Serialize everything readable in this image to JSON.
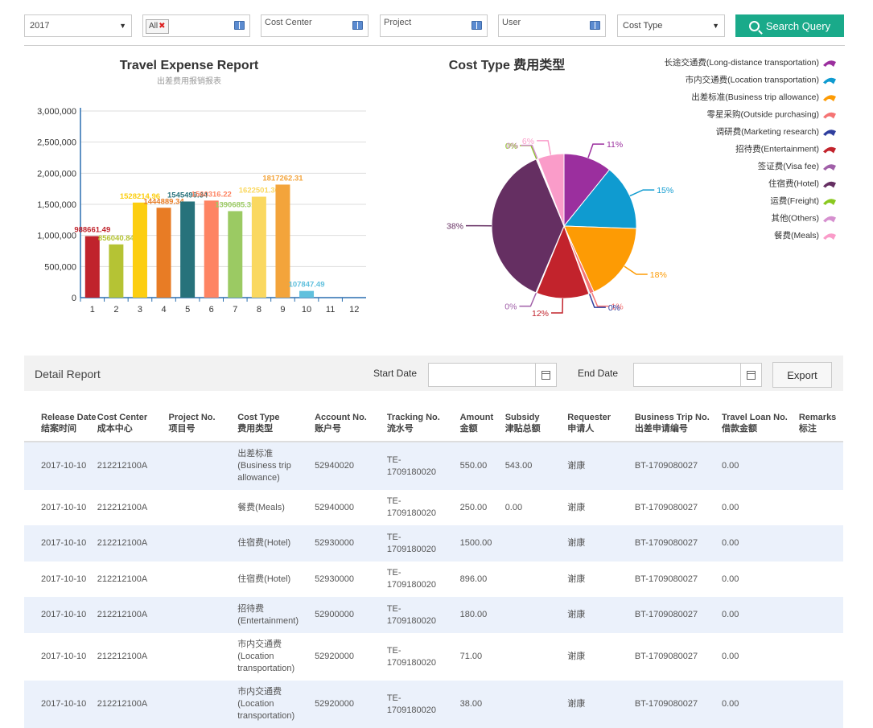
{
  "filters": {
    "year": "2017",
    "chip": "All",
    "cost_center": "Cost Center",
    "project": "Project",
    "user": "User",
    "cost_type": "Cost Type",
    "search_label": "Search Query"
  },
  "bar_chart_data": {
    "type": "bar",
    "title": "Travel Expense Report",
    "subtitle": "出差费用报销报表",
    "categories": [
      "1",
      "2",
      "3",
      "4",
      "5",
      "6",
      "7",
      "8",
      "9",
      "10",
      "11",
      "12"
    ],
    "values": [
      988661.49,
      856040.84,
      1528214.96,
      1444889.34,
      1545499.34,
      1560316.22,
      1390685.31,
      1622501.36,
      1817262.31,
      107847.49,
      0,
      0
    ],
    "labels": [
      "988661.49",
      "856040.84",
      "1528214.96",
      "1444889.34",
      "1545499.34",
      "1560316.22",
      "1390685.31",
      "1622501.36",
      "1817262.31",
      "107847.49",
      "",
      ""
    ],
    "colors": [
      "#c0232c",
      "#b5c334",
      "#fcce10",
      "#e87c25",
      "#27727b",
      "#fe8463",
      "#9bca63",
      "#fad860",
      "#f3a43b",
      "#60c0dd",
      "#d7504b",
      "#c6e579"
    ],
    "ylim": [
      0,
      3000000
    ],
    "yticks": [
      "0",
      "500,000",
      "1,000,000",
      "1,500,000",
      "2,000,000",
      "2,500,000",
      "3,000,000"
    ]
  },
  "pie_chart_data": {
    "type": "pie",
    "title": "Cost Type 费用类型",
    "slices": [
      {
        "name": "长途交通费(Long-distance transportation)",
        "value": 11,
        "label": "11%",
        "color": "#9b2f9e"
      },
      {
        "name": "市内交通费(Location transportation)",
        "value": 15,
        "label": "15%",
        "color": "#0f9bd0"
      },
      {
        "name": "出差标准(Business trip allowance)",
        "value": 18,
        "label": "18%",
        "color": "#fd9b04"
      },
      {
        "name": "零星采购(Outside purchasing)",
        "value": 1,
        "label": "1%",
        "color": "#f57474"
      },
      {
        "name": "调研费(Marketing research)",
        "value": 0.2,
        "label": "0%",
        "color": "#2f3e9e"
      },
      {
        "name": "招待费(Entertainment)",
        "value": 12,
        "label": "12%",
        "color": "#c2232c"
      },
      {
        "name": "签证费(Visa fee)",
        "value": 0.2,
        "label": "0%",
        "color": "#a05fa8"
      },
      {
        "name": "住宿费(Hotel)",
        "value": 38,
        "label": "38%",
        "color": "#652f62"
      },
      {
        "name": "运费(Freight)",
        "value": 0.2,
        "label": "0%",
        "color": "#8ac920"
      },
      {
        "name": "其他(Others)",
        "value": 0.2,
        "label": "0%",
        "color": "#d690cf"
      },
      {
        "name": "餐费(Meals)",
        "value": 6,
        "label": "6%",
        "color": "#fa9cc9"
      }
    ]
  },
  "detail": {
    "title": "Detail Report",
    "start_label": "Start Date",
    "end_label": "End Date",
    "export_label": "Export"
  },
  "table": {
    "headers": [
      [
        "Release Date",
        "结案时间"
      ],
      [
        "Cost Center",
        "成本中心"
      ],
      [
        "Project No.",
        "项目号"
      ],
      [
        "Cost Type",
        "费用类型"
      ],
      [
        "Account No.",
        "账户号"
      ],
      [
        "Tracking No.",
        "流水号"
      ],
      [
        "Amount",
        "金额"
      ],
      [
        "Subsidy",
        "津贴总额"
      ],
      [
        "Requester",
        "申请人"
      ],
      [
        "Business Trip No.",
        "出差申请编号"
      ],
      [
        "Travel Loan No.",
        "借款金额"
      ],
      [
        "Remarks",
        "标注"
      ]
    ],
    "rows": [
      [
        "2017-10-10",
        "212212100A",
        "",
        "出差标准\n(Business trip\nallowance)",
        "52940020",
        "TE-\n1709180020",
        "550.00",
        "543.00",
        "谢康",
        "BT-1709080027",
        "0.00",
        ""
      ],
      [
        "2017-10-10",
        "212212100A",
        "",
        "餐费(Meals)",
        "52940000",
        "TE-\n1709180020",
        "250.00",
        "0.00",
        "谢康",
        "BT-1709080027",
        "0.00",
        ""
      ],
      [
        "2017-10-10",
        "212212100A",
        "",
        "住宿费(Hotel)",
        "52930000",
        "TE-\n1709180020",
        "1500.00",
        "",
        "谢康",
        "BT-1709080027",
        "0.00",
        ""
      ],
      [
        "2017-10-10",
        "212212100A",
        "",
        "住宿费(Hotel)",
        "52930000",
        "TE-\n1709180020",
        "896.00",
        "",
        "谢康",
        "BT-1709080027",
        "0.00",
        ""
      ],
      [
        "2017-10-10",
        "212212100A",
        "",
        "招待费\n(Entertainment)",
        "52900000",
        "TE-\n1709180020",
        "180.00",
        "",
        "谢康",
        "BT-1709080027",
        "0.00",
        ""
      ],
      [
        "2017-10-10",
        "212212100A",
        "",
        "市内交通费\n(Location\ntransportation)",
        "52920000",
        "TE-\n1709180020",
        "71.00",
        "",
        "谢康",
        "BT-1709080027",
        "0.00",
        ""
      ],
      [
        "2017-10-10",
        "212212100A",
        "",
        "市内交通费\n(Location\ntransportation)",
        "52920000",
        "TE-\n1709180020",
        "38.00",
        "",
        "谢康",
        "BT-1709080027",
        "0.00",
        ""
      ]
    ]
  }
}
